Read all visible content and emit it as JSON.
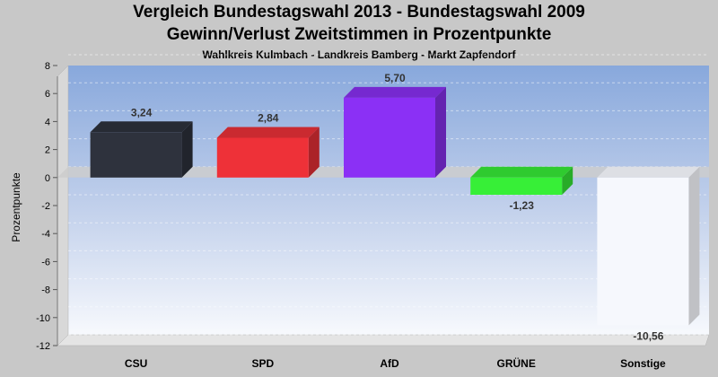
{
  "title": "Vergleich Bundestagswahl 2013 - Bundestagswahl 2009",
  "subtitle": "Gewinn/Verlust Zweitstimmen in Prozentpunkte",
  "subsubtitle": "Wahlkreis Kulmbach - Landkreis Bamberg - Markt Zapfendorf",
  "chart_data": {
    "type": "bar",
    "title": "Vergleich Bundestagswahl 2013 - Bundestagswahl 2009",
    "subtitle": "Gewinn/Verlust Zweitstimmen in Prozentpunkte",
    "xlabel": "",
    "ylabel": "Prozentpunkte",
    "categories": [
      "CSU",
      "SPD",
      "AfD",
      "GRÜNE",
      "Sonstige"
    ],
    "values": [
      3.24,
      2.84,
      5.7,
      -1.23,
      -10.56
    ],
    "value_labels": [
      "3,24",
      "2,84",
      "5,70",
      "-1,23",
      "-10,56"
    ],
    "colors": [
      "#2e323d",
      "#ee3138",
      "#8b30f5",
      "#37ef37",
      "#f6f8fd"
    ],
    "ylim": [
      -12,
      8
    ],
    "yticks": [
      -12,
      -10,
      -8,
      -6,
      -4,
      -2,
      0,
      2,
      4,
      6,
      8
    ],
    "grid": true,
    "legend": "none"
  }
}
